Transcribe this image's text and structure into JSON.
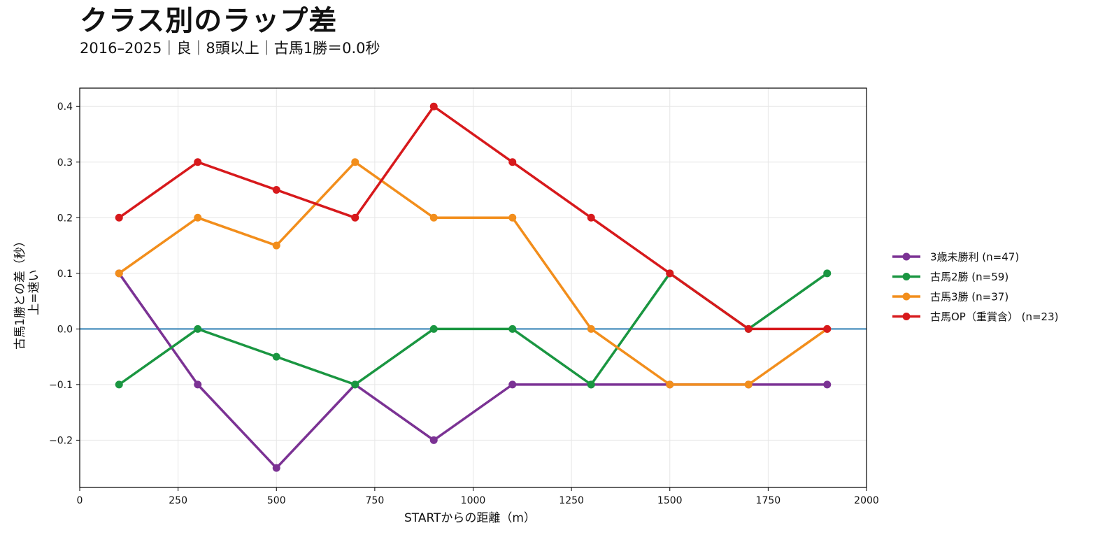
{
  "chart_data": {
    "type": "line",
    "title": "クラス別のラップ差",
    "subtitle": "2016–2025｜良｜8頭以上｜古馬1勝＝0.0秒",
    "xlabel": "STARTからの距離（m）",
    "ylabel": "古馬1勝との差（秒）",
    "ylabel2": "上=速い",
    "xlim": [
      0,
      2000
    ],
    "ylim": [
      -0.285,
      0.433
    ],
    "xticks": [
      0,
      250,
      500,
      750,
      1000,
      1250,
      1500,
      1750,
      2000
    ],
    "xtick_labels": [
      "0",
      "250",
      "500",
      "750",
      "1000",
      "1250",
      "1500",
      "1750",
      "2000"
    ],
    "yticks": [
      -0.2,
      -0.1,
      0.0,
      0.1,
      0.2,
      0.3,
      0.4
    ],
    "ytick_labels": [
      "−0.2",
      "−0.1",
      "0.0",
      "0.1",
      "0.2",
      "0.3",
      "0.4"
    ],
    "grid": true,
    "legend_position": "right",
    "reference_line": {
      "y": 0.0,
      "color": "#2f7fb5"
    },
    "x": [
      100,
      300,
      500,
      700,
      900,
      1100,
      1300,
      1500,
      1700,
      1900
    ],
    "series": [
      {
        "name": "3歳未勝利 (n=47)",
        "color": "#7b3294",
        "values": [
          0.1,
          -0.1,
          -0.25,
          -0.1,
          -0.2,
          -0.1,
          -0.1,
          -0.1,
          -0.1,
          -0.1
        ]
      },
      {
        "name": "古馬2勝 (n=59)",
        "color": "#1a9641",
        "values": [
          -0.1,
          0.0,
          -0.05,
          -0.1,
          0.0,
          0.0,
          -0.1,
          0.1,
          0.0,
          0.1
        ]
      },
      {
        "name": "古馬3勝 (n=37)",
        "color": "#f28e1c",
        "values": [
          0.1,
          0.2,
          0.15,
          0.3,
          0.2,
          0.2,
          0.0,
          -0.1,
          -0.1,
          0.0
        ]
      },
      {
        "name": "古馬OP（重賞含） (n=23)",
        "color": "#d7191c",
        "values": [
          0.2,
          0.3,
          0.25,
          0.2,
          0.4,
          0.3,
          0.2,
          0.1,
          0.0,
          0.0
        ]
      }
    ]
  }
}
